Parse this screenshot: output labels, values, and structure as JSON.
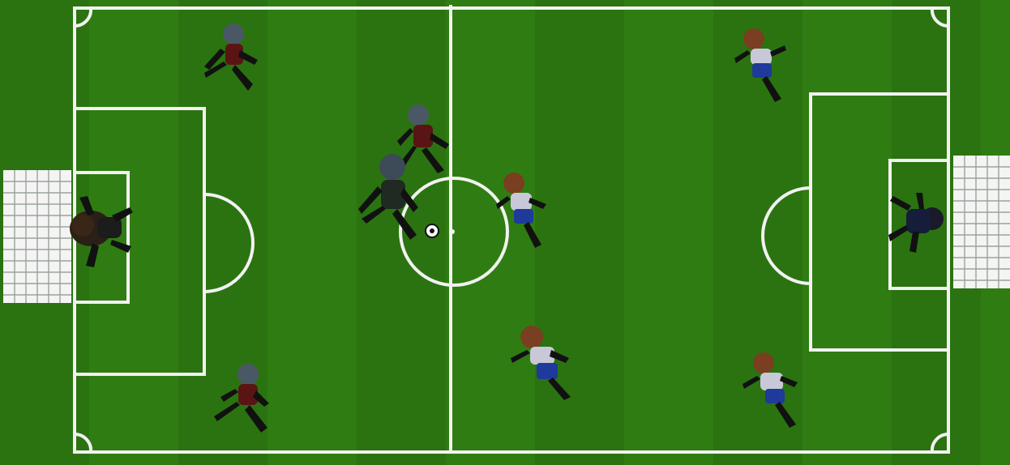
{
  "match": {
    "home_team": {
      "name": "",
      "kit_color": "#6b1a1a",
      "skin": "#1c1c1c"
    },
    "away_team": {
      "name": "",
      "kit_color": "#1e3a9a",
      "skin": "#2a1e14"
    }
  },
  "pitch": {
    "grass_color": "#2f7d12",
    "line_color": "#f2f2f2",
    "net_color": "#f4f4f4"
  },
  "players": [
    {
      "id": "home-gk",
      "team": "home",
      "role": "goalkeeper"
    },
    {
      "id": "home-1",
      "team": "home",
      "role": "outfield"
    },
    {
      "id": "home-2",
      "team": "home",
      "role": "outfield"
    },
    {
      "id": "home-3",
      "team": "home",
      "role": "outfield"
    },
    {
      "id": "home-4",
      "team": "home",
      "role": "outfield"
    },
    {
      "id": "away-gk",
      "team": "away",
      "role": "goalkeeper"
    },
    {
      "id": "away-1",
      "team": "away",
      "role": "outfield"
    },
    {
      "id": "away-2",
      "team": "away",
      "role": "outfield"
    },
    {
      "id": "away-3",
      "team": "away",
      "role": "outfield"
    },
    {
      "id": "away-4",
      "team": "away",
      "role": "outfield"
    }
  ],
  "ball": {
    "color": "#ffffff"
  }
}
